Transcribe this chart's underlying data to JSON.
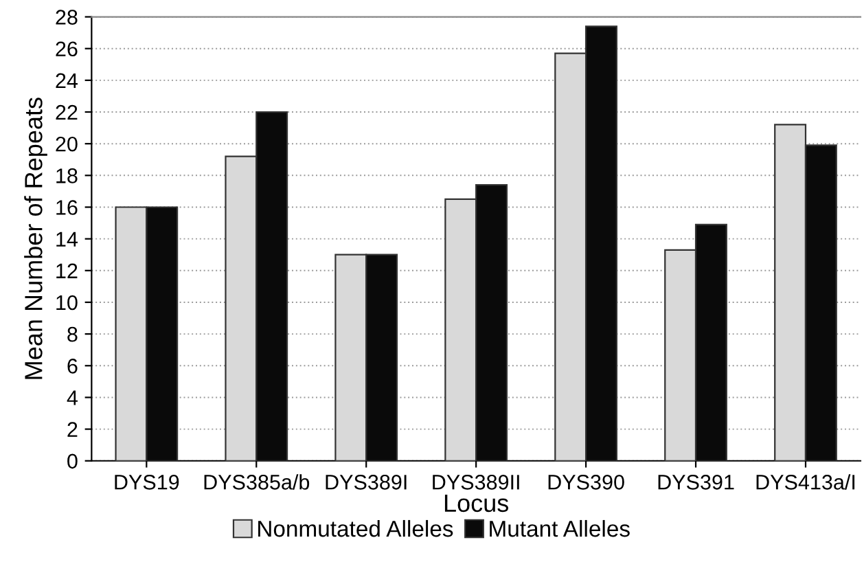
{
  "chart_data": {
    "type": "bar",
    "xlabel": "Locus",
    "ylabel": "Mean Number of Repeats",
    "categories": [
      "DYS19",
      "DYS385a/b",
      "DYS389I",
      "DYS389II",
      "DYS390",
      "DYS391",
      "DYS413a/I"
    ],
    "series": [
      {
        "name": "Nonmutated Alleles",
        "color": "#d9d9d9",
        "values": [
          16,
          19.2,
          13,
          16.5,
          25.7,
          13.3,
          21.2
        ]
      },
      {
        "name": "Mutant Alleles",
        "color": "#0a0a0a",
        "values": [
          16,
          22,
          13,
          17.4,
          27.4,
          14.9,
          19.9
        ]
      }
    ],
    "ylim": [
      0,
      28
    ],
    "yticks": [
      0,
      2,
      4,
      6,
      8,
      10,
      12,
      14,
      16,
      18,
      20,
      22,
      24,
      26,
      28
    ],
    "grid": "y",
    "legend": "bottom"
  }
}
